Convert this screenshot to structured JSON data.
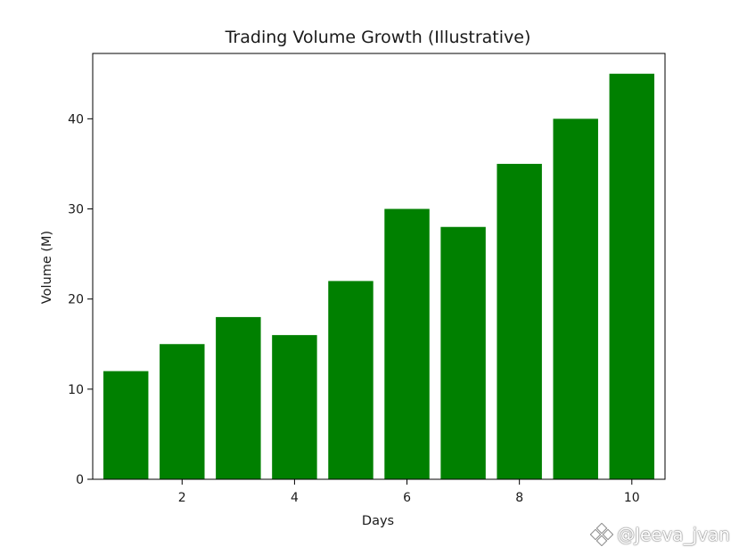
{
  "chart_data": {
    "type": "bar",
    "title": "Trading Volume Growth (Illustrative)",
    "xlabel": "Days",
    "ylabel": "Volume (M)",
    "x": [
      1,
      2,
      3,
      4,
      5,
      6,
      7,
      8,
      9,
      10
    ],
    "values": [
      12,
      15,
      18,
      16,
      22,
      30,
      28,
      35,
      40,
      45
    ],
    "xlim": [
      0.41,
      10.59
    ],
    "ylim": [
      0,
      47.25
    ],
    "xticks": [
      2,
      4,
      6,
      8,
      10
    ],
    "yticks": [
      0,
      10,
      20,
      30,
      40
    ],
    "bar_color": "#008000",
    "grid": false,
    "legend": "none"
  },
  "watermark": {
    "text": "@Jeeva_jvan"
  }
}
